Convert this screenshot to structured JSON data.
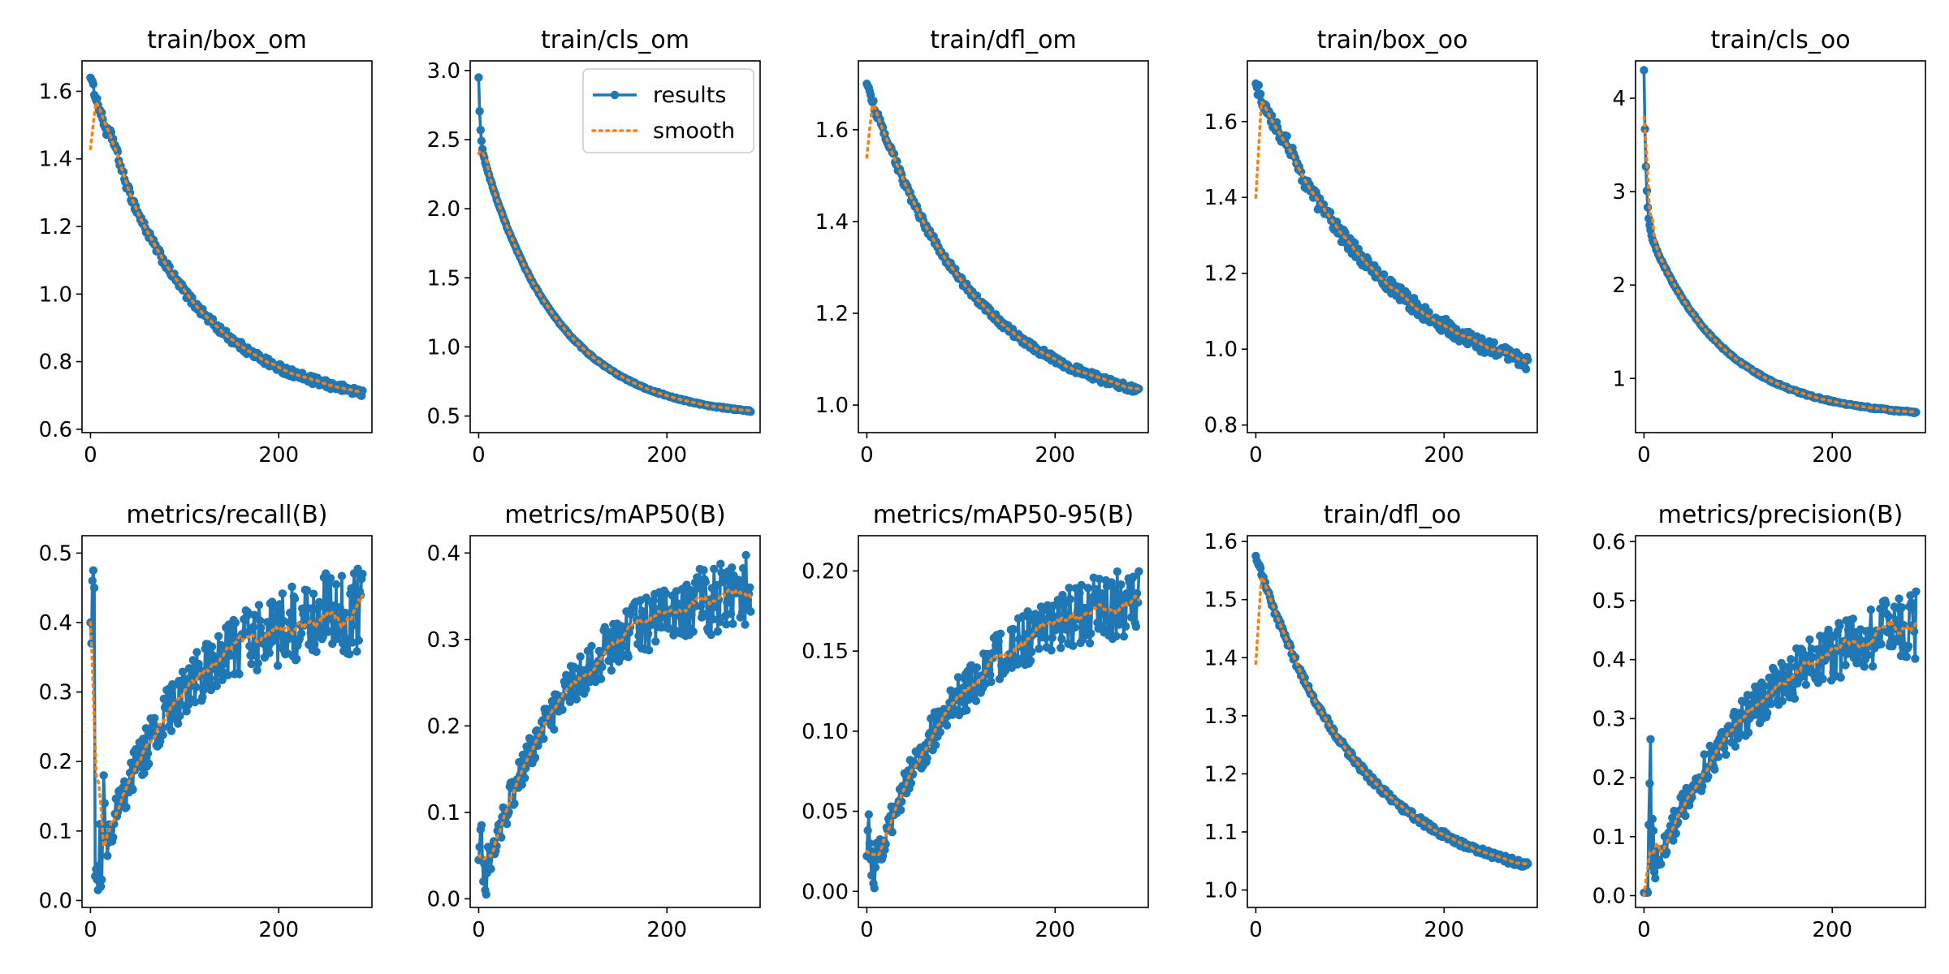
{
  "colors": {
    "results": "#1f77b4",
    "smooth": "#ff7f0e"
  },
  "legend": {
    "items": [
      "results",
      "smooth"
    ],
    "location": "upper-right of train/cls_om"
  },
  "chart_data": [
    {
      "type": "line",
      "title": "train/box_om",
      "xlim": [
        -9,
        299
      ],
      "ylim": [
        0.59,
        1.69
      ],
      "xticks": [
        0,
        200
      ],
      "xtick_labels": [
        "0",
        "200"
      ],
      "yticks": [
        0.6,
        0.8,
        1.0,
        1.2,
        1.4,
        1.6
      ],
      "ytick_labels": [
        "0.6",
        "0.8",
        "1.0",
        "1.2",
        "1.4",
        "1.6"
      ],
      "trend": {
        "kind": "decay",
        "start": 1.64,
        "end": 0.66,
        "rate": 3.0,
        "noise": 0.012,
        "spike": {
          "x": 15,
          "y": 1.48,
          "width": 12
        }
      },
      "smooth_start": 1.43
    },
    {
      "type": "line",
      "title": "train/cls_om",
      "xlim": [
        -9,
        299
      ],
      "ylim": [
        0.38,
        3.07
      ],
      "xticks": [
        0,
        200
      ],
      "xtick_labels": [
        "0",
        "200"
      ],
      "yticks": [
        0.5,
        1.0,
        1.5,
        2.0,
        2.5,
        3.0
      ],
      "ytick_labels": [
        "0.5",
        "1.0",
        "1.5",
        "2.0",
        "2.5",
        "3.0"
      ],
      "trend": {
        "kind": "double-decay",
        "start": 2.95,
        "end": 0.48,
        "fast": 0.45,
        "fast_rate": 0.5,
        "rate": 3.6,
        "noise": 0.006
      },
      "smooth_start": 2.4,
      "show_legend": true
    },
    {
      "type": "line",
      "title": "train/dfl_om",
      "xlim": [
        -9,
        299
      ],
      "ylim": [
        0.94,
        1.75
      ],
      "xticks": [
        0,
        200
      ],
      "xtick_labels": [
        "0",
        "200"
      ],
      "yticks": [
        1.0,
        1.2,
        1.4,
        1.6
      ],
      "ytick_labels": [
        "1.0",
        "1.2",
        "1.4",
        "1.6"
      ],
      "trend": {
        "kind": "decay",
        "start": 1.7,
        "end": 0.98,
        "rate": 2.6,
        "noise": 0.008,
        "spike": {
          "x": 14,
          "y": 1.56,
          "width": 12
        }
      },
      "smooth_start": 1.54
    },
    {
      "type": "line",
      "title": "train/box_oo",
      "xlim": [
        -9,
        299
      ],
      "ylim": [
        0.78,
        1.76
      ],
      "xticks": [
        0,
        200
      ],
      "xtick_labels": [
        "0",
        "200"
      ],
      "yticks": [
        0.8,
        1.0,
        1.2,
        1.4,
        1.6
      ],
      "ytick_labels": [
        "0.8",
        "1.0",
        "1.2",
        "1.4",
        "1.6"
      ],
      "trend": {
        "kind": "decay",
        "start": 1.7,
        "end": 0.85,
        "rate": 2.0,
        "noise": 0.02,
        "spike": {
          "x": 20,
          "y": 1.57,
          "width": 15
        }
      },
      "smooth_start": 1.4
    },
    {
      "type": "line",
      "title": "train/cls_oo",
      "xlim": [
        -9,
        299
      ],
      "ylim": [
        0.42,
        4.4
      ],
      "xticks": [
        0,
        200
      ],
      "xtick_labels": [
        "0",
        "200"
      ],
      "yticks": [
        1,
        2,
        3,
        4
      ],
      "ytick_labels": [
        "1",
        "2",
        "3",
        "4"
      ],
      "trend": {
        "kind": "double-decay",
        "start": 4.3,
        "end": 0.58,
        "fast": 1.6,
        "fast_rate": 0.7,
        "rate": 3.6,
        "noise": 0.01
      },
      "smooth_start": 3.8
    },
    {
      "type": "line",
      "title": "metrics/recall(B)",
      "xlim": [
        -9,
        299
      ],
      "ylim": [
        -0.01,
        0.525
      ],
      "xticks": [
        0,
        200
      ],
      "xtick_labels": [
        "0",
        "200"
      ],
      "yticks": [
        0.0,
        0.1,
        0.2,
        0.3,
        0.4,
        0.5
      ],
      "ytick_labels": [
        "0.0",
        "0.1",
        "0.2",
        "0.3",
        "0.4",
        "0.5"
      ],
      "trend": {
        "kind": "rise",
        "start": 0.0,
        "end": 0.43,
        "rate": 3.5,
        "noise": 0.045,
        "early": [
          0.4,
          0.37,
          0.46,
          0.475,
          0.45,
          0.035,
          0.045,
          0.03,
          0.015,
          0.05,
          0.11,
          0.02,
          0.03,
          0.1,
          0.18,
          0.14
        ]
      },
      "smooth_start": 0.4
    },
    {
      "type": "line",
      "title": "metrics/mAP50(B)",
      "xlim": [
        -9,
        299
      ],
      "ylim": [
        -0.01,
        0.42
      ],
      "xticks": [
        0,
        200
      ],
      "xtick_labels": [
        "0",
        "200"
      ],
      "yticks": [
        0.0,
        0.1,
        0.2,
        0.3,
        0.4
      ],
      "ytick_labels": [
        "0.0",
        "0.1",
        "0.2",
        "0.3",
        "0.4"
      ],
      "trend": {
        "kind": "rise",
        "start": 0.0,
        "end": 0.37,
        "rate": 3.2,
        "noise": 0.03,
        "early": [
          0.045,
          0.06,
          0.08,
          0.085,
          0.045,
          0.02,
          0.04,
          0.01,
          0.005,
          0.03,
          0.06,
          0.045
        ]
      },
      "smooth_start": 0.05
    },
    {
      "type": "line",
      "title": "metrics/mAP50-95(B)",
      "xlim": [
        -9,
        299
      ],
      "ylim": [
        -0.01,
        0.222
      ],
      "xticks": [
        0,
        200
      ],
      "xtick_labels": [
        "0",
        "200"
      ],
      "yticks": [
        0.0,
        0.05,
        0.1,
        0.15,
        0.2
      ],
      "ytick_labels": [
        "0.00",
        "0.05",
        "0.10",
        "0.15",
        "0.20"
      ],
      "trend": {
        "kind": "rise",
        "start": 0.0,
        "end": 0.19,
        "rate": 3.0,
        "noise": 0.016,
        "early": [
          0.022,
          0.038,
          0.048,
          0.03,
          0.02,
          0.01,
          0.025,
          0.005,
          0.002,
          0.015,
          0.03,
          0.02
        ]
      },
      "smooth_start": 0.025
    },
    {
      "type": "line",
      "title": "train/dfl_oo",
      "xlim": [
        -9,
        299
      ],
      "ylim": [
        0.97,
        1.61
      ],
      "xticks": [
        0,
        200
      ],
      "xtick_labels": [
        "0",
        "200"
      ],
      "yticks": [
        1.0,
        1.1,
        1.2,
        1.3,
        1.4,
        1.5,
        1.6
      ],
      "ytick_labels": [
        "1.0",
        "1.1",
        "1.2",
        "1.3",
        "1.4",
        "1.5",
        "1.6"
      ],
      "trend": {
        "kind": "decay",
        "start": 1.575,
        "end": 1.0,
        "rate": 2.6,
        "noise": 0.006,
        "spike": {
          "x": 15,
          "y": 1.46,
          "width": 12
        }
      },
      "smooth_start": 1.39
    },
    {
      "type": "line",
      "title": "metrics/precision(B)",
      "xlim": [
        -9,
        299
      ],
      "ylim": [
        -0.02,
        0.61
      ],
      "xticks": [
        0,
        200
      ],
      "xtick_labels": [
        "0",
        "200"
      ],
      "yticks": [
        0.0,
        0.1,
        0.2,
        0.3,
        0.4,
        0.5,
        0.6
      ],
      "ytick_labels": [
        "0.0",
        "0.1",
        "0.2",
        "0.3",
        "0.4",
        "0.5",
        "0.6"
      ],
      "trend": {
        "kind": "rise",
        "start": 0.0,
        "end": 0.5,
        "rate": 2.5,
        "noise": 0.04,
        "early": [
          0.005,
          0.005,
          0.005,
          0.008,
          0.005,
          0.12,
          0.19,
          0.265,
          0.05,
          0.13,
          0.11,
          0.04
        ]
      },
      "smooth_start": 0.0
    }
  ]
}
